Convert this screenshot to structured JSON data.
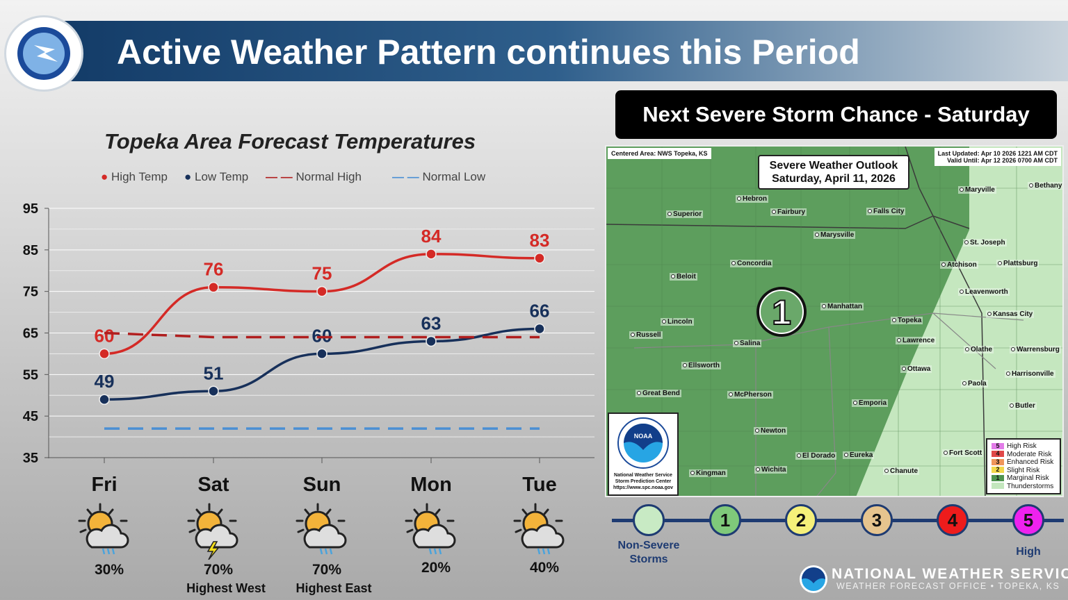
{
  "header": {
    "title": "Active Weather Pattern continues this Period",
    "logo_text": "NATIONAL WEATHER SERVICE"
  },
  "chart_data": {
    "type": "line",
    "title": "Topeka Area Forecast Temperatures",
    "categories": [
      "Fri",
      "Sat",
      "Sun",
      "Mon",
      "Tue"
    ],
    "series": [
      {
        "name": "High Temp",
        "values": [
          60,
          76,
          75,
          84,
          83
        ],
        "color": "#d42a26",
        "style": "solid"
      },
      {
        "name": "Low Temp",
        "values": [
          49,
          51,
          60,
          63,
          66
        ],
        "color": "#17305a",
        "style": "solid"
      },
      {
        "name": "Normal High",
        "values": [
          65,
          64,
          64,
          64,
          64
        ],
        "color": "#b01e1e",
        "style": "dashed"
      },
      {
        "name": "Normal Low",
        "values": [
          42,
          42,
          42,
          42,
          42
        ],
        "color": "#4a8fd4",
        "style": "dashed"
      }
    ],
    "yticks": [
      35,
      45,
      55,
      65,
      75,
      85,
      95
    ],
    "ylim": [
      35,
      95
    ],
    "grid": true,
    "legend": "top"
  },
  "days": [
    {
      "name": "Fri",
      "icon": "partly-sunny-rain-icon",
      "pop": "30%",
      "note": ""
    },
    {
      "name": "Sat",
      "icon": "partly-sunny-thunderstorm-icon",
      "pop": "70%",
      "note": "Highest West"
    },
    {
      "name": "Sun",
      "icon": "partly-sunny-rain-icon",
      "pop": "70%",
      "note": "Highest East"
    },
    {
      "name": "Mon",
      "icon": "partly-sunny-rain-icon",
      "pop": "20%",
      "note": ""
    },
    {
      "name": "Tue",
      "icon": "partly-sunny-rain-icon",
      "pop": "40%",
      "note": ""
    }
  ],
  "outlook": {
    "heading": "Next Severe Storm Chance - Saturday",
    "centered": "Centered Area: NWS Topeka, KS",
    "updated": "Last Updated: Apr 10 2026 1221 AM CDT",
    "valid": "Valid Until: Apr 12 2026 0700 AM CDT",
    "title1": "Severe Weather Outlook",
    "title2": "Saturday, April 11, 2026",
    "risk_level": "1",
    "cities": [
      "Superior",
      "Hebron",
      "Fairbury",
      "Falls City",
      "Maryville",
      "Bethany",
      "Marysville",
      "St. Joseph",
      "Concordia",
      "Atchison",
      "Plattsburg",
      "Beloit",
      "Leavenworth",
      "Manhattan",
      "Kansas City",
      "Lincoln",
      "Topeka",
      "Russell",
      "Lawrence",
      "Salina",
      "Olathe",
      "Warrensburg",
      "Ellsworth",
      "Ottawa",
      "Harrisonville",
      "Paola",
      "Great Bend",
      "McPherson",
      "Emporia",
      "Butler",
      "Newton",
      "Fort Scott",
      "El Dorado",
      "Eureka",
      "Wichita",
      "Chanute",
      "Kingman"
    ],
    "legend": [
      {
        "num": "5",
        "label": "High Risk",
        "color": "#e27ce8"
      },
      {
        "num": "4",
        "label": "Moderate Risk",
        "color": "#e04848"
      },
      {
        "num": "3",
        "label": "Enhanced Risk",
        "color": "#f0955a"
      },
      {
        "num": "2",
        "label": "Slight Risk",
        "color": "#f3d84a"
      },
      {
        "num": "1",
        "label": "Marginal Risk",
        "color": "#4f944f"
      },
      {
        "num": "",
        "label": "Thunderstorms",
        "color": "#c3e6bd"
      }
    ],
    "noaa": {
      "line1": "National Weather Service",
      "line2": "Storm Prediction Center",
      "line3": "https://www.spc.noaa.gov"
    }
  },
  "scale": {
    "levels": [
      {
        "num": "",
        "color": "#c8eac4"
      },
      {
        "num": "1",
        "color": "#7fc97a"
      },
      {
        "num": "2",
        "color": "#f5f07a"
      },
      {
        "num": "3",
        "color": "#e6c48e"
      },
      {
        "num": "4",
        "color": "#ee1c1c"
      },
      {
        "num": "5",
        "color": "#ee22ee"
      }
    ],
    "low_label": "Non-Severe Storms",
    "high_label": "High"
  },
  "footer": {
    "line1": "NATIONAL WEATHER SERVICE",
    "line2": "WEATHER FORECAST OFFICE  •  TOPEKA, KS"
  }
}
